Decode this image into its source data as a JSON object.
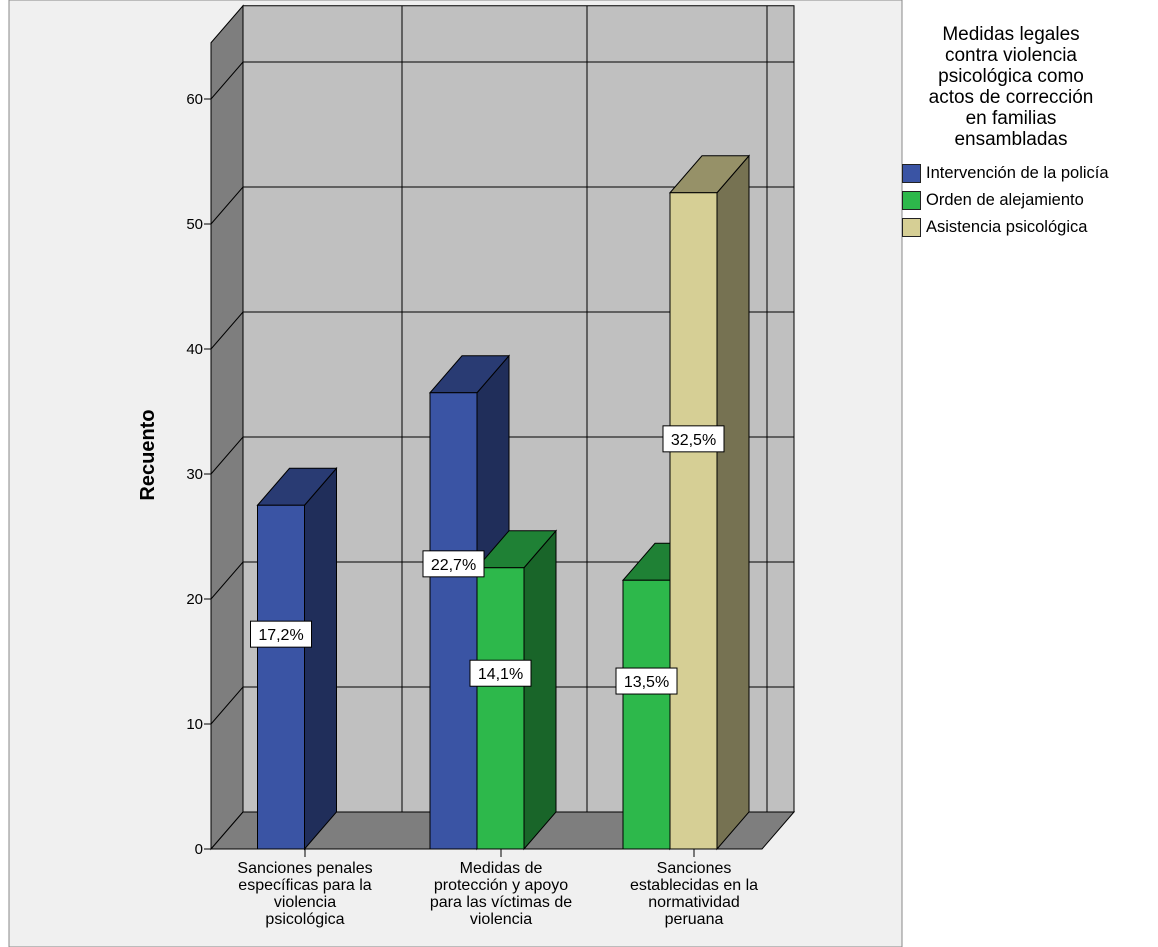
{
  "chart_data": {
    "type": "bar",
    "variant": "3d-clustered",
    "ylabel": "Recuento",
    "ylim": [
      0,
      60
    ],
    "yticks": [
      0,
      10,
      20,
      30,
      40,
      50,
      60
    ],
    "grid": true,
    "legend_placement": "right",
    "categories": [
      "Sanciones penales\nespecíficas para la\nviolencia\npsicológica",
      "Medidas de\nprotección y apoyo\npara las víctimas de\nviolencia",
      "Sanciones\nestablecidas en la\nnormatividad\nperuana"
    ],
    "legend_title": "Medidas legales\ncontra violencia\npsicológica como\nactos de corrección\nen familias\nensambladas",
    "series": [
      {
        "name": "Intervención de la policía",
        "color": "#3a54a4",
        "values": [
          27.5,
          36.5,
          null
        ],
        "labels": [
          "17,2%",
          "22,7%",
          null
        ]
      },
      {
        "name": "Orden de alejamiento",
        "color": "#2db84b",
        "values": [
          null,
          22.5,
          21.5
        ],
        "labels": [
          null,
          "14,1%",
          "13,5%"
        ]
      },
      {
        "name": "Asistencia psicológica",
        "color": "#d6cf95",
        "values": [
          null,
          null,
          52.5
        ],
        "labels": [
          null,
          null,
          "32,5%"
        ]
      }
    ]
  }
}
